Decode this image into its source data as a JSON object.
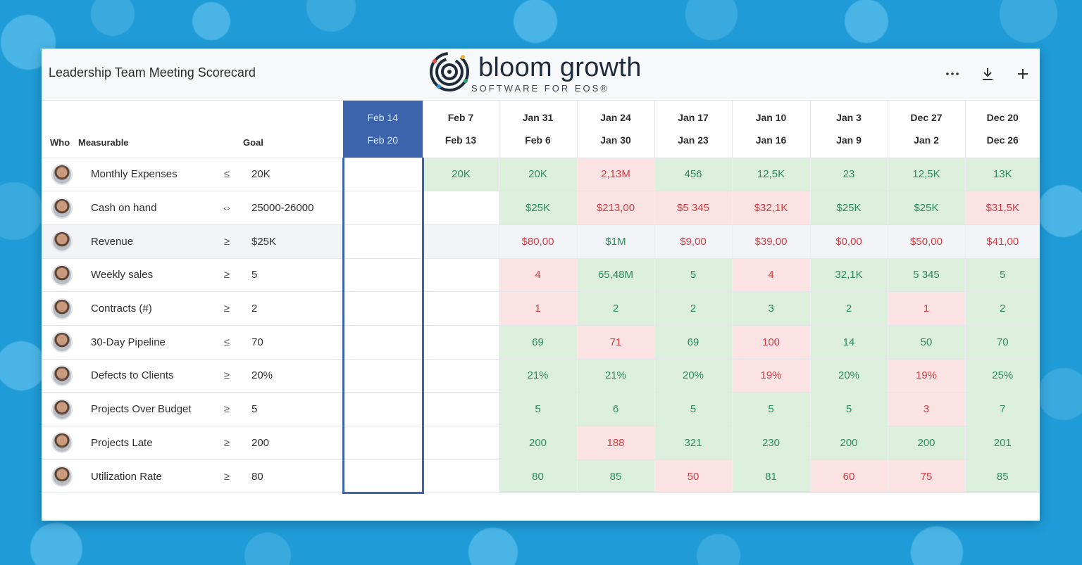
{
  "header": {
    "title": "Leadership Team Meeting Scorecard",
    "logo_word": "bloom growth",
    "logo_tagline": "SOFTWARE FOR EOS®",
    "actions": [
      {
        "name": "more-options-icon",
        "label": "···"
      },
      {
        "name": "download-icon",
        "label": ""
      },
      {
        "name": "add-icon",
        "label": "+"
      }
    ]
  },
  "columns": {
    "who": "Who",
    "measurable": "Measurable",
    "goal": "Goal"
  },
  "weeks": [
    {
      "start": "Feb 14",
      "end": "Feb 20",
      "current": true
    },
    {
      "start": "Feb 7",
      "end": "Feb 13"
    },
    {
      "start": "Jan 31",
      "end": "Feb 6"
    },
    {
      "start": "Jan 24",
      "end": "Jan 30"
    },
    {
      "start": "Jan 17",
      "end": "Jan 23"
    },
    {
      "start": "Jan 10",
      "end": "Jan 16"
    },
    {
      "start": "Jan 3",
      "end": "Jan 9"
    },
    {
      "start": "Dec 27",
      "end": "Jan 2"
    },
    {
      "start": "Dec 20",
      "end": "Dec 26"
    }
  ],
  "rows": [
    {
      "measurable": "Monthly Expenses",
      "op": "≤",
      "goal": "20K",
      "values": [
        [
          "",
          ""
        ],
        [
          "20K",
          "g"
        ],
        [
          "20K",
          "g"
        ],
        [
          "2,13M",
          "r"
        ],
        [
          "456",
          "g"
        ],
        [
          "12,5K",
          "g"
        ],
        [
          "23",
          "g"
        ],
        [
          "12,5K",
          "g"
        ],
        [
          "13K",
          "g"
        ]
      ]
    },
    {
      "measurable": "Cash on hand",
      "op": "⇔",
      "goal": "25000-26000",
      "values": [
        [
          "",
          ""
        ],
        [
          "",
          ""
        ],
        [
          "$25K",
          "g"
        ],
        [
          "$213,00",
          "r"
        ],
        [
          "$5 345",
          "r"
        ],
        [
          "$32,1K",
          "r"
        ],
        [
          "$25K",
          "g"
        ],
        [
          "$25K",
          "g"
        ],
        [
          "$31,5K",
          "r"
        ]
      ]
    },
    {
      "measurable": "Revenue",
      "op": "≥",
      "goal": "$25K",
      "shaded": true,
      "values": [
        [
          "",
          ""
        ],
        [
          "",
          ""
        ],
        [
          "$80,00",
          "r"
        ],
        [
          "$1M",
          "g"
        ],
        [
          "$9,00",
          "r"
        ],
        [
          "$39,00",
          "r"
        ],
        [
          "$0,00",
          "r"
        ],
        [
          "$50,00",
          "r"
        ],
        [
          "$41,00",
          "r"
        ]
      ]
    },
    {
      "measurable": "Weekly sales",
      "op": "≥",
      "goal": "5",
      "values": [
        [
          "",
          ""
        ],
        [
          "",
          ""
        ],
        [
          "4",
          "r"
        ],
        [
          "65,48M",
          "g"
        ],
        [
          "5",
          "g"
        ],
        [
          "4",
          "r"
        ],
        [
          "32,1K",
          "g"
        ],
        [
          "5 345",
          "g"
        ],
        [
          "5",
          "g"
        ]
      ]
    },
    {
      "measurable": "Contracts (#)",
      "op": "≥",
      "goal": "2",
      "values": [
        [
          "",
          ""
        ],
        [
          "",
          ""
        ],
        [
          "1",
          "r"
        ],
        [
          "2",
          "g"
        ],
        [
          "2",
          "g"
        ],
        [
          "3",
          "g"
        ],
        [
          "2",
          "g"
        ],
        [
          "1",
          "r"
        ],
        [
          "2",
          "g"
        ]
      ]
    },
    {
      "measurable": "30-Day Pipeline",
      "op": "≤",
      "goal": "70",
      "values": [
        [
          "",
          ""
        ],
        [
          "",
          ""
        ],
        [
          "69",
          "g"
        ],
        [
          "71",
          "r"
        ],
        [
          "69",
          "g"
        ],
        [
          "100",
          "r"
        ],
        [
          "14",
          "g"
        ],
        [
          "50",
          "g"
        ],
        [
          "70",
          "g"
        ]
      ]
    },
    {
      "measurable": "Defects to Clients",
      "op": "≥",
      "goal": "20%",
      "values": [
        [
          "",
          ""
        ],
        [
          "",
          ""
        ],
        [
          "21%",
          "g"
        ],
        [
          "21%",
          "g"
        ],
        [
          "20%",
          "g"
        ],
        [
          "19%",
          "r"
        ],
        [
          "20%",
          "g"
        ],
        [
          "19%",
          "r"
        ],
        [
          "25%",
          "g"
        ]
      ]
    },
    {
      "measurable": "Projects Over Budget",
      "op": "≥",
      "goal": "5",
      "values": [
        [
          "",
          ""
        ],
        [
          "",
          ""
        ],
        [
          "5",
          "g"
        ],
        [
          "6",
          "g"
        ],
        [
          "5",
          "g"
        ],
        [
          "5",
          "g"
        ],
        [
          "5",
          "g"
        ],
        [
          "3",
          "r"
        ],
        [
          "7",
          "g"
        ]
      ]
    },
    {
      "measurable": "Projects Late",
      "op": "≥",
      "goal": "200",
      "values": [
        [
          "",
          ""
        ],
        [
          "",
          ""
        ],
        [
          "200",
          "g"
        ],
        [
          "188",
          "r"
        ],
        [
          "321",
          "g"
        ],
        [
          "230",
          "g"
        ],
        [
          "200",
          "g"
        ],
        [
          "200",
          "g"
        ],
        [
          "201",
          "g"
        ]
      ]
    },
    {
      "measurable": "Utilization Rate",
      "op": "≥",
      "goal": "80",
      "values": [
        [
          "",
          ""
        ],
        [
          "",
          ""
        ],
        [
          "80",
          "g"
        ],
        [
          "85",
          "g"
        ],
        [
          "50",
          "r"
        ],
        [
          "81",
          "g"
        ],
        [
          "60",
          "r"
        ],
        [
          "75",
          "r"
        ],
        [
          "85",
          "g"
        ]
      ]
    }
  ],
  "colors": {
    "brand_blue": "#3b64ad",
    "good_bg": "#dcefdc",
    "good_text": "#2f8b5c",
    "bad_bg": "#fbe3e3",
    "bad_text": "#d13f45"
  }
}
